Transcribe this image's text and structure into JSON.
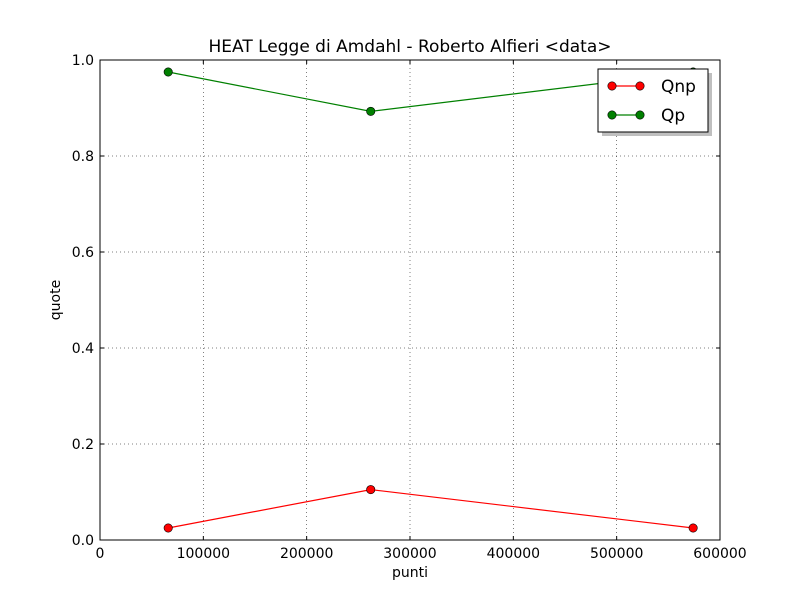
{
  "chart_data": {
    "type": "line",
    "title": "HEAT  Legge di Amdahl  -   Roberto Alfieri  <data>",
    "xlabel": "punti",
    "ylabel": "quote",
    "xlim": [
      0,
      600000
    ],
    "ylim": [
      0.0,
      1.0
    ],
    "xticks": [
      0,
      100000,
      200000,
      300000,
      400000,
      500000,
      600000
    ],
    "xtick_labels": [
      "0",
      "100000",
      "200000",
      "300000",
      "400000",
      "500000",
      "600000"
    ],
    "yticks": [
      0.0,
      0.2,
      0.4,
      0.6,
      0.8,
      1.0
    ],
    "ytick_labels": [
      "0.0",
      "0.2",
      "0.4",
      "0.6",
      "0.8",
      "1.0"
    ],
    "grid": true,
    "legend_position": "top-right",
    "series": [
      {
        "name": "Qnp",
        "color": "#ff0000",
        "marker": "circle",
        "x": [
          66000,
          262000,
          574000
        ],
        "y": [
          0.025,
          0.105,
          0.025
        ]
      },
      {
        "name": "Qp",
        "color": "#008000",
        "marker": "circle",
        "x": [
          66000,
          262000,
          574000
        ],
        "y": [
          0.975,
          0.893,
          0.975
        ]
      }
    ]
  }
}
